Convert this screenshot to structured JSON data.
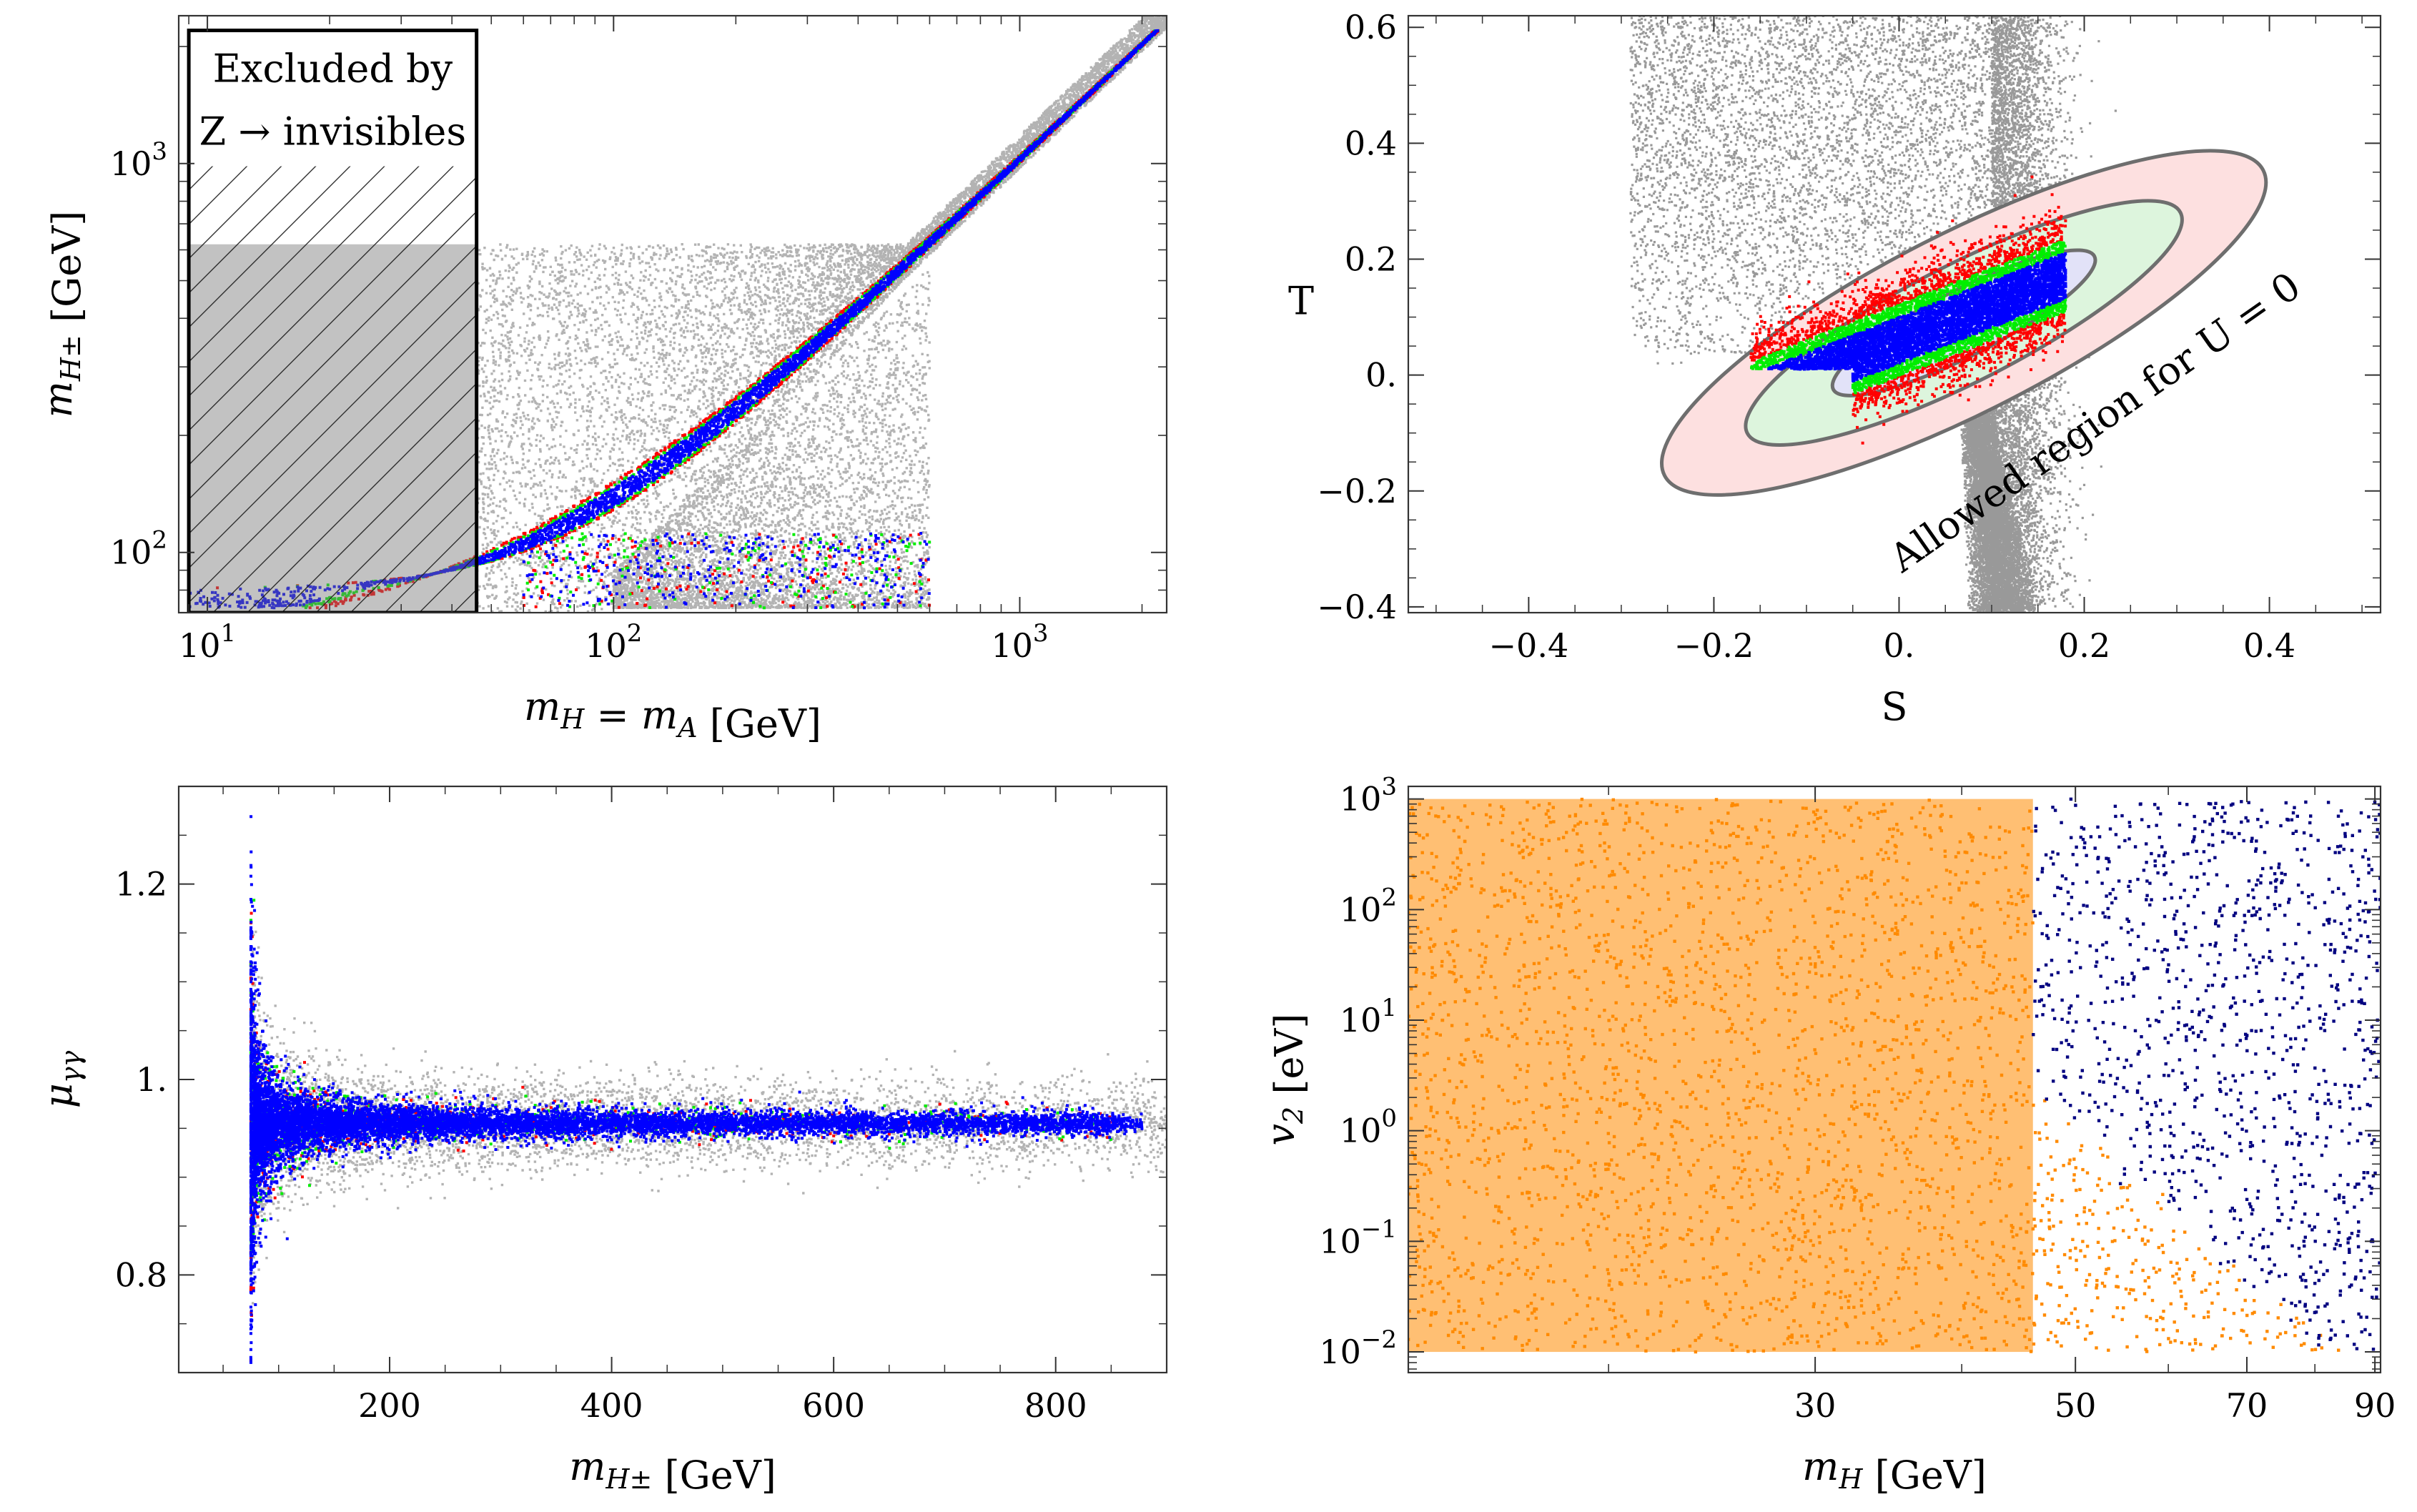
{
  "chart_data": [
    {
      "type": "scatter",
      "id": "mass-plane",
      "xlabel": {
        "sym": "m",
        "sub": "H",
        "mid": " = ",
        "sym2": "m",
        "sub2": "A",
        "unit": " [GeV]"
      },
      "ylabel": {
        "sym": "m",
        "sub": "H±",
        "unit": " [GeV]"
      },
      "xscale": "log",
      "yscale": "log",
      "xlim": [
        8.5,
        2300
      ],
      "ylim": [
        70,
        2400
      ],
      "x_ticks": [
        {
          "v": 10,
          "label": "10",
          "sup": "1"
        },
        {
          "v": 100,
          "label": "10",
          "sup": "2"
        },
        {
          "v": 1000,
          "label": "10",
          "sup": "3"
        }
      ],
      "y_ticks": [
        {
          "v": 100,
          "label": "10",
          "sup": "2"
        },
        {
          "v": 1000,
          "label": "10",
          "sup": "3"
        }
      ],
      "annotation_lines": [
        "Excluded by",
        "Z → invisibles"
      ],
      "excluded_region": {
        "x": [
          9,
          46
        ],
        "y": [
          70,
          2200
        ],
        "shaded_y_max": 620
      },
      "series": [
        {
          "color": "#b3b3b3",
          "description_points": "grey envelope"
        },
        {
          "color": "#ff0000"
        },
        {
          "color": "#00ee00"
        },
        {
          "color": "#0000ff"
        }
      ]
    },
    {
      "type": "scatter",
      "id": "st-plane",
      "xlabel": "S",
      "ylabel": "T",
      "xlim": [
        -0.53,
        0.52
      ],
      "ylim": [
        -0.41,
        0.62
      ],
      "x_ticks": [
        {
          "v": -0.4,
          "label": "−0.4"
        },
        {
          "v": -0.2,
          "label": "−0.2"
        },
        {
          "v": 0,
          "label": "0."
        },
        {
          "v": 0.2,
          "label": "0.2"
        },
        {
          "v": 0.4,
          "label": "0.4"
        }
      ],
      "y_ticks": [
        {
          "v": -0.4,
          "label": "−0.4"
        },
        {
          "v": -0.2,
          "label": "−0.2"
        },
        {
          "v": 0,
          "label": "0."
        },
        {
          "v": 0.2,
          "label": "0.2"
        },
        {
          "v": 0.4,
          "label": "0.4"
        },
        {
          "v": 0.6,
          "label": "0.6"
        }
      ],
      "annotation": "Allowed region for U = 0",
      "ellipse_center": [
        0.07,
        0.09
      ],
      "ellipses": [
        {
          "fill": "#fde0e0",
          "stroke": "#6e6e6e"
        },
        {
          "fill": "#ddf5dd",
          "stroke": "#6e6e6e"
        },
        {
          "fill": "#e2e2f8",
          "stroke": "#6e6e6e"
        }
      ],
      "series": [
        {
          "color": "#999999"
        },
        {
          "color": "#ff0000"
        },
        {
          "color": "#00ee00"
        },
        {
          "color": "#0000ff"
        }
      ]
    },
    {
      "type": "scatter",
      "id": "diphoton",
      "xlabel": {
        "sym": "m",
        "sub": "H±",
        "unit": " [GeV]"
      },
      "ylabel": {
        "sym": "μ",
        "sub": "γγ"
      },
      "xlim": [
        10,
        900
      ],
      "ylim": [
        0.7,
        1.3
      ],
      "x_ticks": [
        {
          "v": 200,
          "label": "200"
        },
        {
          "v": 400,
          "label": "400"
        },
        {
          "v": 600,
          "label": "600"
        },
        {
          "v": 800,
          "label": "800"
        }
      ],
      "y_ticks": [
        {
          "v": 0.8,
          "label": "0.8"
        },
        {
          "v": 1.0,
          "label": "1."
        },
        {
          "v": 1.2,
          "label": "1.2"
        }
      ],
      "asymptote": 0.955,
      "series": [
        {
          "color": "#b3b3b3"
        },
        {
          "color": "#ff0000"
        },
        {
          "color": "#00ee00"
        },
        {
          "color": "#0000ff"
        }
      ]
    },
    {
      "type": "scatter",
      "id": "vev-plane",
      "xlabel": {
        "sym": "m",
        "sub": "H",
        "unit": " [GeV]"
      },
      "ylabel": {
        "sym": "v",
        "sub": "2",
        "unit": " [eV]"
      },
      "xscale": "log",
      "yscale": "log",
      "xlim": [
        13.5,
        91
      ],
      "ylim": [
        0.0065,
        1300
      ],
      "x_ticks": [
        {
          "v": 30,
          "label": "30"
        },
        {
          "v": 50,
          "label": "50"
        },
        {
          "v": 70,
          "label": "70"
        },
        {
          "v": 90,
          "label": "90"
        }
      ],
      "y_ticks": [
        {
          "v": 0.01,
          "label": "10",
          "sup": "−2"
        },
        {
          "v": 0.1,
          "label": "10",
          "sup": "−1"
        },
        {
          "v": 1,
          "label": "10",
          "sup": "0"
        },
        {
          "v": 10,
          "label": "10",
          "sup": "1"
        },
        {
          "v": 100,
          "label": "10",
          "sup": "2"
        },
        {
          "v": 1000,
          "label": "10",
          "sup": "3"
        }
      ],
      "boundary_x": 46,
      "series": [
        {
          "color": "#ff8a00"
        },
        {
          "color": "#000080"
        }
      ]
    }
  ]
}
